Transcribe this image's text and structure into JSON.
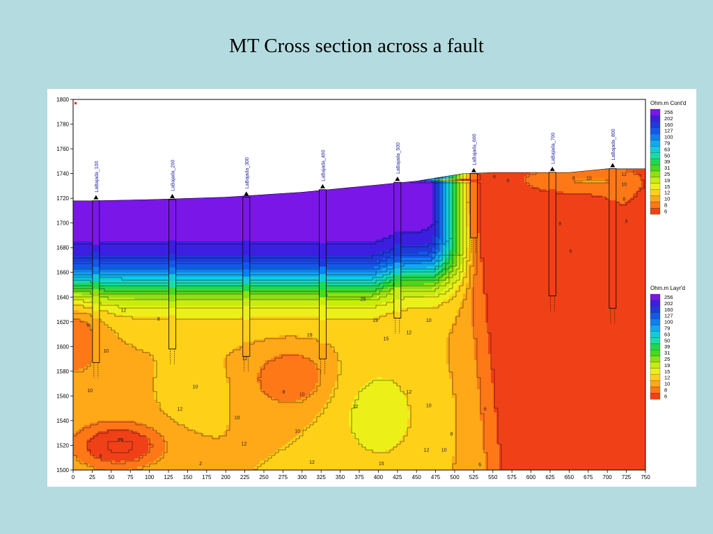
{
  "slide": {
    "title": "MT Cross section across a fault"
  },
  "chart_data": {
    "type": "heatmap",
    "x_ticks": [
      0,
      25,
      50,
      75,
      100,
      125,
      150,
      175,
      200,
      225,
      250,
      275,
      300,
      325,
      350,
      375,
      400,
      425,
      450,
      475,
      500,
      525,
      550,
      575,
      600,
      625,
      650,
      675,
      700,
      725,
      750
    ],
    "y_ticks": [
      1500,
      1520,
      1540,
      1560,
      1580,
      1600,
      1620,
      1640,
      1660,
      1680,
      1700,
      1720,
      1740,
      1760,
      1780,
      1800
    ],
    "xlim": [
      0,
      750
    ],
    "ylim": [
      1500,
      1800
    ],
    "surface": [
      [
        0,
        1718
      ],
      [
        25,
        1718
      ],
      [
        100,
        1719
      ],
      [
        200,
        1721
      ],
      [
        300,
        1725
      ],
      [
        400,
        1731
      ],
      [
        450,
        1734
      ],
      [
        510,
        1740
      ],
      [
        550,
        1741
      ],
      [
        650,
        1741
      ],
      [
        700,
        1744
      ],
      [
        740,
        1744
      ],
      [
        750,
        1744
      ]
    ],
    "wells": [
      {
        "name": "LaBajada_100",
        "x": 30,
        "top": 1718,
        "bottom": 1587
      },
      {
        "name": "LaBajada_200",
        "x": 130,
        "top": 1719,
        "bottom": 1598
      },
      {
        "name": "LaBajada_300",
        "x": 227,
        "top": 1721,
        "bottom": 1592
      },
      {
        "name": "LaBajada_400",
        "x": 327,
        "top": 1727,
        "bottom": 1590
      },
      {
        "name": "LaBajada_500",
        "x": 425,
        "top": 1733,
        "bottom": 1623
      },
      {
        "name": "LaBajada_600",
        "x": 525,
        "top": 1740,
        "bottom": 1688
      },
      {
        "name": "LaBajada_700",
        "x": 628,
        "top": 1741,
        "bottom": 1641
      },
      {
        "name": "LaBajada_800",
        "x": 707,
        "top": 1744,
        "bottom": 1631
      }
    ],
    "contour_labels": [
      {
        "text": "8",
        "x": 20,
        "y": 1616
      },
      {
        "text": "10",
        "x": 43,
        "y": 1595
      },
      {
        "text": "12",
        "x": 66,
        "y": 1628
      },
      {
        "text": "10",
        "x": 22,
        "y": 1563
      },
      {
        "text": "10",
        "x": 160,
        "y": 1566
      },
      {
        "text": "12",
        "x": 140,
        "y": 1548
      },
      {
        "text": "10",
        "x": 215,
        "y": 1541
      },
      {
        "text": "8",
        "x": 276,
        "y": 1562
      },
      {
        "text": "12",
        "x": 225,
        "y": 1589
      },
      {
        "text": "10",
        "x": 300,
        "y": 1560
      },
      {
        "text": "12",
        "x": 370,
        "y": 1550
      },
      {
        "text": "12",
        "x": 224,
        "y": 1520
      },
      {
        "text": "10",
        "x": 294,
        "y": 1530
      },
      {
        "text": "12",
        "x": 313,
        "y": 1505
      },
      {
        "text": "15",
        "x": 404,
        "y": 1504
      },
      {
        "text": "19",
        "x": 310,
        "y": 1608
      },
      {
        "text": "25",
        "x": 380,
        "y": 1637
      },
      {
        "text": "19",
        "x": 396,
        "y": 1620
      },
      {
        "text": "15",
        "x": 410,
        "y": 1605
      },
      {
        "text": "12",
        "x": 440,
        "y": 1610
      },
      {
        "text": "10",
        "x": 466,
        "y": 1620
      },
      {
        "text": "12",
        "x": 440,
        "y": 1562
      },
      {
        "text": "10",
        "x": 466,
        "y": 1551
      },
      {
        "text": "8",
        "x": 496,
        "y": 1528
      },
      {
        "text": "10",
        "x": 486,
        "y": 1515
      },
      {
        "text": "12",
        "x": 463,
        "y": 1515
      },
      {
        "text": "6",
        "x": 540,
        "y": 1548
      },
      {
        "text": "8",
        "x": 552,
        "y": 1736
      },
      {
        "text": "6",
        "x": 570,
        "y": 1733
      },
      {
        "text": "8",
        "x": 656,
        "y": 1735
      },
      {
        "text": "10",
        "x": 676,
        "y": 1735
      },
      {
        "text": "12",
        "x": 722,
        "y": 1738
      },
      {
        "text": "10",
        "x": 722,
        "y": 1730
      },
      {
        "text": "8",
        "x": 722,
        "y": 1718
      },
      {
        "text": "6",
        "x": 725,
        "y": 1700
      },
      {
        "text": "6",
        "x": 652,
        "y": 1676
      },
      {
        "text": "8",
        "x": 638,
        "y": 1698
      },
      {
        "text": "6",
        "x": 533,
        "y": 1503
      },
      {
        "text": "8",
        "x": 36,
        "y": 1510
      },
      {
        "text": "10",
        "x": 62,
        "y": 1523
      },
      {
        "text": "2",
        "x": 167,
        "y": 1504
      },
      {
        "text": "8",
        "x": 112,
        "y": 1621
      }
    ],
    "legend_contour": {
      "title": "Ohm.m Cont'd",
      "labels": [
        "256",
        "202",
        "160",
        "127",
        "100",
        "79",
        "63",
        "50",
        "39",
        "31",
        "25",
        "19",
        "15",
        "12",
        "10",
        "8",
        "6"
      ],
      "colors": [
        "#7a17e8",
        "#3c1ee0",
        "#1e3ad8",
        "#1458e8",
        "#0e80f0",
        "#12a8f0",
        "#10ccd8",
        "#18dca8",
        "#20d850",
        "#48d820",
        "#90e010",
        "#c8ec10",
        "#ecf018",
        "#ffd018",
        "#ffa818",
        "#ff7818",
        "#f04018"
      ]
    },
    "legend_layer": {
      "title": "Ohm.m Layr'd",
      "labels": [
        "256",
        "202",
        "160",
        "127",
        "100",
        "79",
        "63",
        "50",
        "39",
        "31",
        "25",
        "19",
        "15",
        "12",
        "10",
        "8",
        "6"
      ],
      "colors": [
        "#7a17e8",
        "#3c1ee0",
        "#1e3ad8",
        "#1458e8",
        "#0e80f0",
        "#12a8f0",
        "#10ccd8",
        "#18dca8",
        "#20d850",
        "#48d820",
        "#90e010",
        "#c8ec10",
        "#ecf018",
        "#ffd018",
        "#ffa818",
        "#ff7818",
        "#f04018"
      ]
    }
  }
}
